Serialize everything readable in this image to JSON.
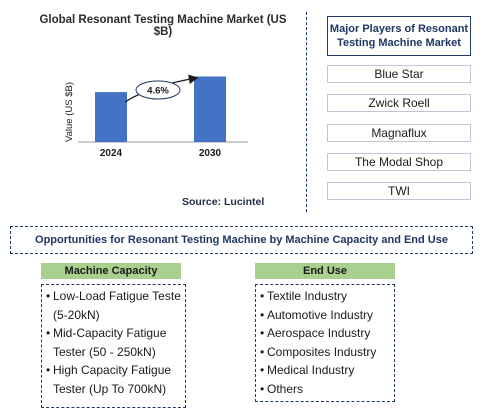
{
  "chart_data": {
    "type": "bar",
    "title": "Global Resonant Testing Machine Market (US $B)",
    "ylabel": "Value (US $B)",
    "categories": [
      "2024",
      "2030"
    ],
    "values": [
      0.64,
      0.84
    ],
    "ylim": [
      0,
      1
    ],
    "annotation": "4.6%",
    "color": "#4472c4"
  },
  "source": "Source: Lucintel",
  "players": {
    "title": "Major Players of Resonant Testing Machine Market",
    "items": [
      "Blue Star",
      "Zwick Roell",
      "Magnaflux",
      "The Modal Shop",
      "TWI"
    ]
  },
  "opportunities": {
    "title": "Opportunities for Resonant Testing Machine by Machine Capacity and End Use"
  },
  "machine_capacity": {
    "header": "Machine Capacity",
    "items": [
      "Low-Load Fatigue Teste",
      "(5-20kN)",
      "Mid-Capacity Fatigue",
      "Tester (50 - 250kN)",
      "High Capacity Fatigue",
      "Tester (Up To 700kN)"
    ]
  },
  "end_use": {
    "header": "End Use",
    "items": [
      "Textile Industry",
      "Automotive Industry",
      "Aerospace Industry",
      "Composites Industry",
      "Medical Industry",
      "Others"
    ]
  }
}
